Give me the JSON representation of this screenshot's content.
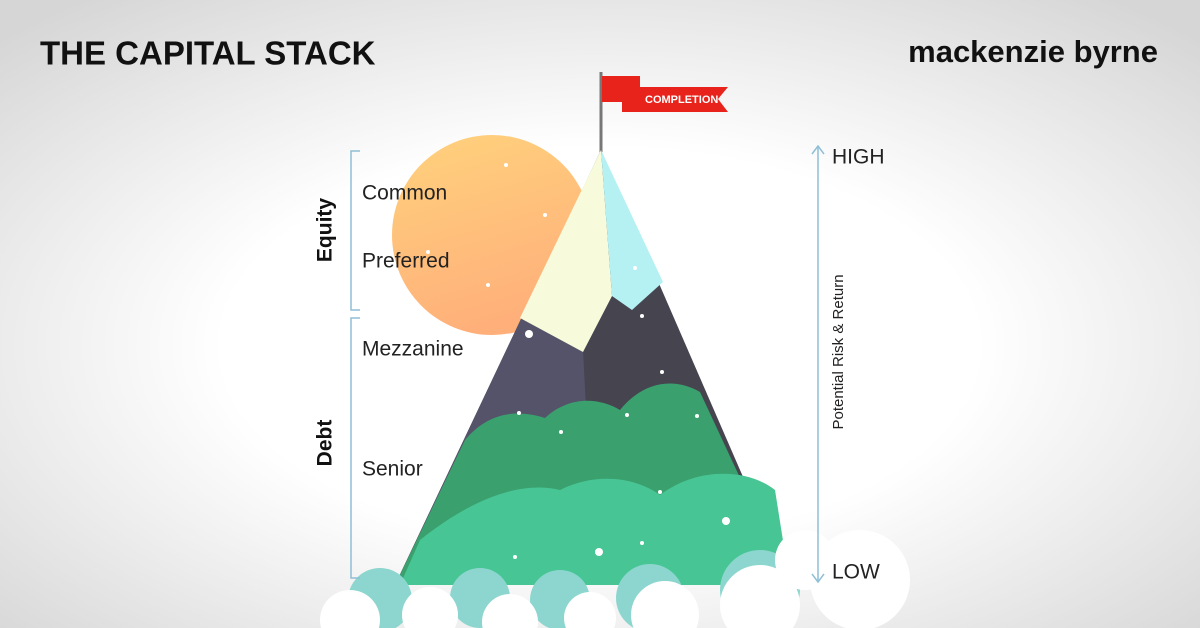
{
  "header": {
    "title": "THE CAPITAL STACK",
    "brand": "mackenzie byrne"
  },
  "flag": {
    "label": "COMPLETION"
  },
  "groups": [
    {
      "label": "Equity",
      "layers": [
        "Common",
        "Preferred"
      ]
    },
    {
      "label": "Debt",
      "layers": [
        "Mezzanine",
        "Senior"
      ]
    }
  ],
  "scale": {
    "label": "Potential Risk & Return",
    "high": "HIGH",
    "low": "LOW"
  }
}
